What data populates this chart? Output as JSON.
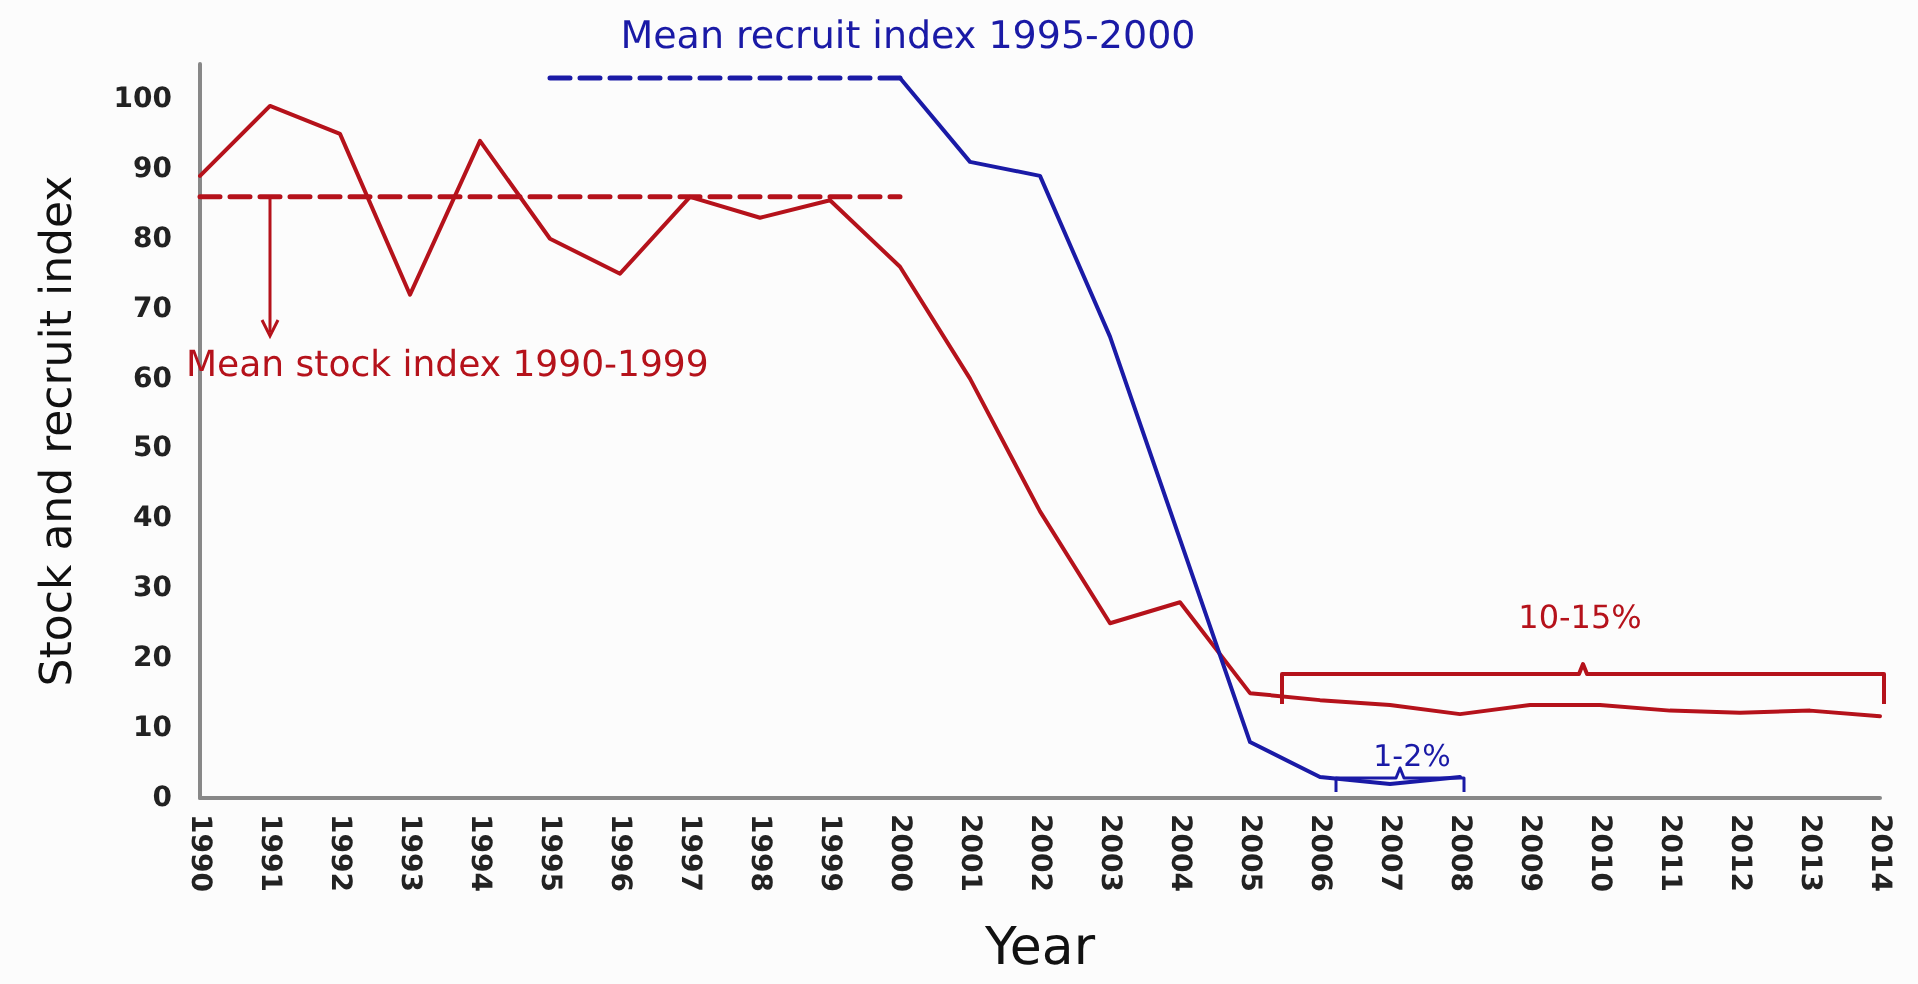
{
  "chart_data": {
    "type": "line",
    "xlabel": "Year",
    "ylabel": "Stock and recruit index",
    "categories": [
      "1990",
      "1991",
      "1992",
      "1993",
      "1994",
      "1995",
      "1996",
      "1997",
      "1998",
      "1999",
      "2000",
      "2001",
      "2002",
      "2003",
      "2004",
      "2005",
      "2006",
      "2007",
      "2008",
      "2009",
      "2010",
      "2011",
      "2012",
      "2013",
      "2014"
    ],
    "series": [
      {
        "color": "#b5121b",
        "values": [
          89,
          99,
          95,
          72,
          94,
          80,
          75,
          86,
          83,
          85.5,
          76,
          60,
          41,
          25,
          28,
          15,
          14,
          13.3,
          12,
          13.3,
          13.3,
          12.5,
          12.2,
          12.5,
          11.7
        ]
      },
      {
        "color": "#1a1aa6",
        "values": [
          null,
          null,
          null,
          null,
          null,
          null,
          null,
          null,
          null,
          null,
          103,
          91,
          89,
          66,
          37,
          8,
          3,
          2,
          3,
          null,
          null,
          null,
          null,
          null,
          null
        ]
      },
      {
        "color": "#b5121b",
        "values": [
          86,
          86,
          86,
          86,
          86,
          86,
          86,
          86,
          86,
          86,
          86,
          null,
          null,
          null,
          null,
          null,
          null,
          null,
          null,
          null,
          null,
          null,
          null,
          null,
          null
        ],
        "line_style": "dashed"
      },
      {
        "color": "#1a1aa6",
        "values": [
          null,
          null,
          null,
          null,
          null,
          103,
          103,
          103,
          103,
          103,
          103,
          null,
          null,
          null,
          null,
          null,
          null,
          null,
          null,
          null,
          null,
          null,
          null,
          null,
          null
        ],
        "line_style": "dashed"
      }
    ],
    "annotations": [
      "Mean recruit index 1995-2000",
      {
        "text": "Mean stock index 1990-1999",
        "x": "1991",
        "y": 86
      },
      "10-15%",
      "1-2%"
    ],
    "ylim": [
      0,
      105
    ],
    "yticks": [
      0,
      10,
      20,
      30,
      40,
      50,
      60,
      70,
      80,
      90,
      100
    ],
    "grid": false,
    "marker": "none",
    "line_style": "solid"
  }
}
